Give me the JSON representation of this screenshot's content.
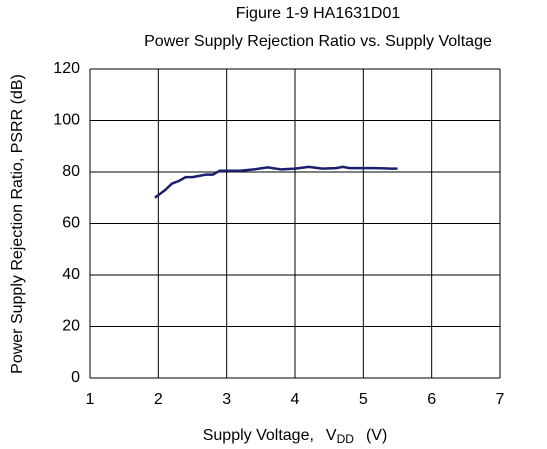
{
  "chart_data": {
    "type": "line",
    "title": "Figure 1-9 HA1631D01",
    "subtitle": "Power Supply Rejection Ratio vs. Supply Voltage",
    "y_label": "Power Supply Rejection Ratio,  PSRR  (dB)",
    "x_label": {
      "text": "Supply Voltage,",
      "symbol": "V",
      "subscript": "DD",
      "unit": "(V)"
    },
    "x": [
      1.95,
      2.0,
      2.1,
      2.2,
      2.3,
      2.4,
      2.5,
      2.6,
      2.7,
      2.8,
      2.9,
      3.0,
      3.2,
      3.4,
      3.6,
      3.8,
      4.0,
      4.2,
      4.4,
      4.6,
      4.7,
      4.8,
      5.0,
      5.2,
      5.4,
      5.5
    ],
    "series": [
      {
        "color": "#1a1f6e",
        "values": [
          70,
          71,
          73,
          75.5,
          76.5,
          78,
          78,
          78.5,
          79,
          79,
          80.5,
          80.5,
          80.5,
          81,
          81.8,
          81,
          81.3,
          82,
          81.3,
          81.5,
          82,
          81.5,
          81.5,
          81.5,
          81.3,
          81.3
        ]
      }
    ],
    "xlim": [
      1,
      7
    ],
    "xticks": [
      1,
      2,
      3,
      4,
      5,
      6,
      7
    ],
    "ylim": [
      0,
      120
    ],
    "yticks": [
      0,
      20,
      40,
      60,
      80,
      100,
      120
    ],
    "grid": true
  }
}
